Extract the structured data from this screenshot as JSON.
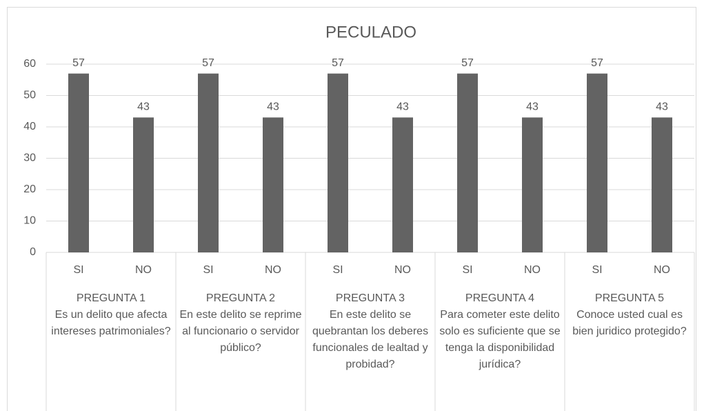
{
  "chart_data": {
    "type": "bar",
    "title": "PECULADO",
    "categories": [
      "SI",
      "NO",
      "SI",
      "NO",
      "SI",
      "NO",
      "SI",
      "NO",
      "SI",
      "NO"
    ],
    "groups": [
      {
        "title": "PREGUNTA 1",
        "question": "Es un delito que afecta intereses patrimoniales?"
      },
      {
        "title": "PREGUNTA 2",
        "question": "En este delito se reprime al funcionario o servidor público?"
      },
      {
        "title": "PREGUNTA 3",
        "question": "En este delito se quebrantan los deberes funcionales de lealtad y probidad?"
      },
      {
        "title": "PREGUNTA 4",
        "question": "Para cometer este delito solo es suficiente que se tenga la disponibilidad jurídica?"
      },
      {
        "title": "PREGUNTA 5",
        "question": "Conoce usted cual es bien juridico protegido?"
      }
    ],
    "values": [
      57,
      43,
      57,
      43,
      57,
      43,
      57,
      43,
      57,
      43
    ],
    "color": "#636363",
    "ylim": [
      0,
      60
    ],
    "yticks": [
      0,
      10,
      20,
      30,
      40,
      50,
      60
    ],
    "grid": true
  }
}
